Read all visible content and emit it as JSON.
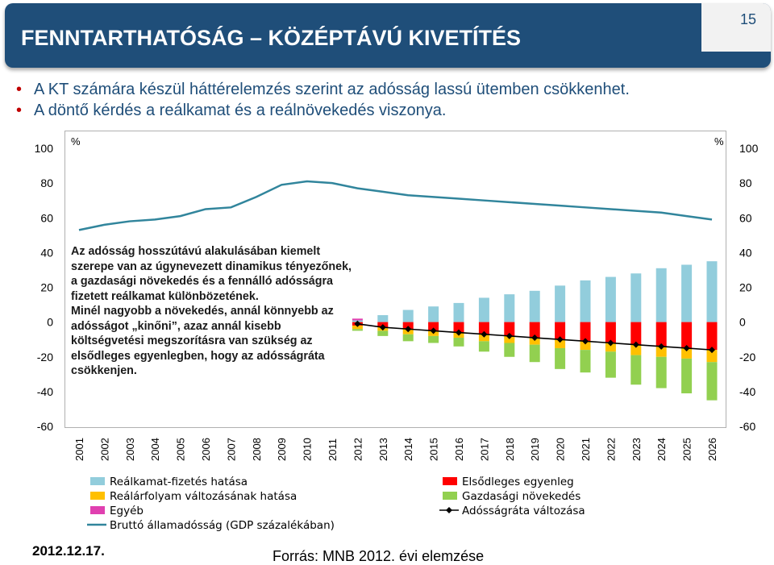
{
  "header": {
    "title": "FENNTARTHATÓSÁG – KÖZÉPTÁVÚ KIVETÍTÉS",
    "page_number": "15"
  },
  "bullets": [
    "A KT számára készül háttérelemzés szerint az adósság lassú ütemben csökkenhet.",
    "A döntő kérdés a reálkamat és a reálnövekedés viszonya."
  ],
  "annotation": {
    "para1": "Az adósság hosszútávú alakulásában kiemelt szerepe van az úgynevezett dinamikus tényezőnek, a gazdasági növekedés és a fennálló adósságra fizetett reálkamat különbözetének.",
    "para2": "Minél nagyobb a növekedés, annál könnyebb az adósságot „kinőni”, azaz annál kisebb költségvetési megszorításra van szükség az elsődleges egyenlegben, hogy az adósságráta csökkenjen."
  },
  "footer": {
    "date": "2012.12.17.",
    "source": "Forrás: MNB 2012. évi elemzése"
  },
  "colors": {
    "title_bg": "#1f4e79",
    "real_interest": "#92cddc",
    "exchange_rate": "#ffc000",
    "other": "#e040b0",
    "primary_balance": "#ff0000",
    "growth": "#92d050",
    "gross_debt": "#31859c",
    "debt_change": "#000000"
  },
  "chart_data": {
    "type": "bar",
    "stacked": true,
    "categories": [
      "2001",
      "2002",
      "2003",
      "2004",
      "2005",
      "2006",
      "2007",
      "2008",
      "2009",
      "2010",
      "2011",
      "2012",
      "2013",
      "2014",
      "2015",
      "2016",
      "2017",
      "2018",
      "2019",
      "2020",
      "2021",
      "2022",
      "2023",
      "2024",
      "2025",
      "2026"
    ],
    "ylim": [
      -60,
      100
    ],
    "yticks": [
      "100",
      "80",
      "60",
      "40",
      "20",
      "0",
      "-20",
      "-40",
      "-60"
    ],
    "left_unit": "%",
    "right_unit": "%",
    "series": [
      {
        "name": "Reálkamat-fizetés hatása",
        "kind": "bar",
        "values": [
          null,
          null,
          null,
          null,
          null,
          null,
          null,
          null,
          null,
          null,
          null,
          1,
          4,
          7,
          9,
          11,
          14,
          16,
          18,
          21,
          24,
          26,
          28,
          31,
          33,
          35
        ]
      },
      {
        "name": "Reálárfolyam változásának hatása",
        "kind": "bar",
        "values": [
          null,
          null,
          null,
          null,
          null,
          null,
          null,
          null,
          null,
          null,
          null,
          -2,
          -2,
          -3,
          -3,
          -3,
          -4,
          -4,
          -4,
          -5,
          -5,
          -5,
          -6,
          -6,
          -6,
          -7
        ]
      },
      {
        "name": "Egyéb",
        "kind": "bar",
        "values": [
          null,
          null,
          null,
          null,
          null,
          null,
          null,
          null,
          null,
          null,
          null,
          1,
          0,
          0,
          0,
          0,
          0,
          0,
          0,
          0,
          0,
          0,
          0,
          0,
          0,
          0
        ]
      },
      {
        "name": "Elsődleges egyenleg",
        "kind": "bar",
        "values": [
          null,
          null,
          null,
          null,
          null,
          null,
          null,
          null,
          null,
          null,
          null,
          -2,
          -3,
          -4,
          -5,
          -6,
          -7,
          -8,
          -9,
          -10,
          -11,
          -12,
          -13,
          -14,
          -15,
          -16
        ]
      },
      {
        "name": "Gazdasági növekedés",
        "kind": "bar",
        "values": [
          null,
          null,
          null,
          null,
          null,
          null,
          null,
          null,
          null,
          null,
          null,
          -1,
          -3,
          -4,
          -4,
          -5,
          -6,
          -8,
          -10,
          -12,
          -13,
          -15,
          -17,
          -18,
          -20,
          -22
        ]
      },
      {
        "name": "Adósságráta változása",
        "kind": "line-marker",
        "values": [
          null,
          null,
          null,
          null,
          null,
          null,
          null,
          null,
          null,
          null,
          null,
          -1,
          -3,
          -4,
          -5,
          -6,
          -7,
          -8,
          -9,
          -10,
          -11,
          -12,
          -13,
          -14,
          -15,
          -16
        ]
      },
      {
        "name": "Bruttó államadósság (GDP százalékában)",
        "kind": "line",
        "values": [
          53,
          56,
          58,
          59,
          61,
          65,
          66,
          72,
          79,
          81,
          80,
          77,
          75,
          73,
          72,
          71,
          70,
          69,
          68,
          67,
          66,
          65,
          64,
          63,
          61,
          59
        ]
      }
    ],
    "legend": [
      {
        "label": "Reálkamat-fizetés hatása",
        "color_key": "real_interest",
        "kind": "box"
      },
      {
        "label": "Reálárfolyam változásának hatása",
        "color_key": "exchange_rate",
        "kind": "box"
      },
      {
        "label": "Egyéb",
        "color_key": "other",
        "kind": "box"
      },
      {
        "label": "Bruttó államadósság (GDP százalékában)",
        "color_key": "gross_debt",
        "kind": "line"
      },
      {
        "label": "Elsődleges egyenleg",
        "color_key": "primary_balance",
        "kind": "box"
      },
      {
        "label": "Gazdasági növekedés",
        "color_key": "growth",
        "kind": "box"
      },
      {
        "label": "Adósságráta változása",
        "color_key": "debt_change",
        "kind": "marker-line"
      }
    ],
    "legend_position": "bottom"
  }
}
